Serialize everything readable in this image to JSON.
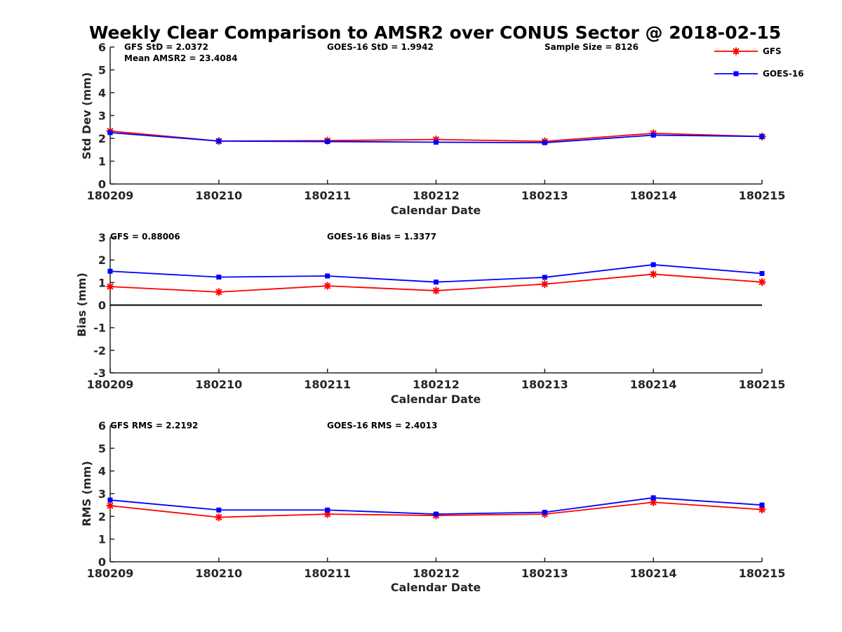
{
  "title": "Weekly Clear Comparison to AMSR2 over CONUS Sector @ 2018-02-15",
  "colors": {
    "GFS": "#ff0000",
    "GOES-16": "#0000ff",
    "axis": "#262626",
    "zero_line": "#000000"
  },
  "legend": {
    "placement": "top-right",
    "items": [
      {
        "name": "GFS",
        "marker": "asterisk"
      },
      {
        "name": "GOES-16",
        "marker": "square"
      }
    ]
  },
  "chart_data": [
    {
      "type": "line",
      "ylabel": "Std Dev (mm)",
      "xlabel": "Calendar Date",
      "x": [
        "180209",
        "180210",
        "180211",
        "180212",
        "180213",
        "180214",
        "180215"
      ],
      "ylim": [
        0,
        6
      ],
      "yticks": [
        "0",
        "1",
        "2",
        "3",
        "4",
        "5",
        "6"
      ],
      "grid": false,
      "annotations": [
        "GFS StD = 2.0372",
        "Mean AMSR2 = 23.4084",
        "GOES-16 StD = 1.9942",
        "Sample Size = 8126"
      ],
      "series": [
        {
          "name": "GFS",
          "values": [
            2.32,
            1.88,
            1.9,
            1.95,
            1.87,
            2.22,
            2.08
          ]
        },
        {
          "name": "GOES-16",
          "values": [
            2.25,
            1.88,
            1.86,
            1.83,
            1.81,
            2.14,
            2.08
          ]
        }
      ]
    },
    {
      "type": "line",
      "ylabel": "Bias (mm)",
      "xlabel": "Calendar Date",
      "x": [
        "180209",
        "180210",
        "180211",
        "180212",
        "180213",
        "180214",
        "180215"
      ],
      "ylim": [
        -3,
        3
      ],
      "yticks": [
        "-3",
        "-2",
        "-1",
        "0",
        "1",
        "2",
        "3"
      ],
      "grid": false,
      "zero_line": true,
      "annotations": [
        "GFS = 0.88006",
        "GOES-16 Bias  = 1.3377"
      ],
      "series": [
        {
          "name": "GFS",
          "values": [
            0.82,
            0.58,
            0.85,
            0.64,
            0.93,
            1.37,
            1.02
          ]
        },
        {
          "name": "GOES-16",
          "values": [
            1.5,
            1.24,
            1.29,
            1.02,
            1.23,
            1.79,
            1.4
          ]
        }
      ]
    },
    {
      "type": "line",
      "ylabel": "RMS (mm)",
      "xlabel": "Calendar Date",
      "x": [
        "180209",
        "180210",
        "180211",
        "180212",
        "180213",
        "180214",
        "180215"
      ],
      "ylim": [
        0,
        6
      ],
      "yticks": [
        "0",
        "1",
        "2",
        "3",
        "4",
        "5",
        "6"
      ],
      "grid": false,
      "annotations": [
        "GFS RMS = 2.2192",
        "GOES-16 RMS = 2.4013"
      ],
      "series": [
        {
          "name": "GFS",
          "values": [
            2.47,
            1.96,
            2.1,
            2.04,
            2.1,
            2.62,
            2.3
          ]
        },
        {
          "name": "GOES-16",
          "values": [
            2.72,
            2.28,
            2.28,
            2.1,
            2.18,
            2.82,
            2.5
          ]
        }
      ]
    }
  ]
}
